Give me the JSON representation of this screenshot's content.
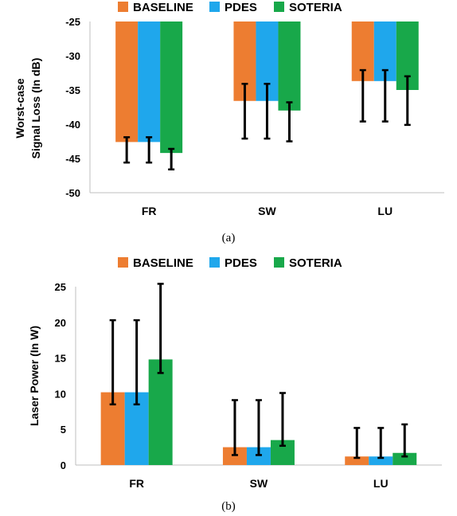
{
  "colors": {
    "BASELINE": "#ED7D31",
    "PDES": "#1FA7EC",
    "SOTERIA": "#18A84A"
  },
  "chart_data": [
    {
      "type": "bar",
      "caption": "(a)",
      "categories": [
        "FR",
        "SW",
        "LU"
      ],
      "ylabel_lines": [
        "Worst-case",
        "Signal Loss (In dB)"
      ],
      "ylim": [
        -50,
        -25
      ],
      "yticks": [
        -25,
        -30,
        -35,
        -40,
        -45,
        -50
      ],
      "bar_base": -25,
      "legend_position": "top",
      "series": [
        {
          "name": "BASELINE",
          "values": [
            -42.6,
            -36.6,
            -33.7
          ],
          "err_low": [
            -45.6,
            -42.1,
            -39.6
          ],
          "err_high": [
            -41.9,
            -34.1,
            -32.1
          ]
        },
        {
          "name": "PDES",
          "values": [
            -42.6,
            -36.6,
            -33.7
          ],
          "err_low": [
            -45.6,
            -42.1,
            -39.6
          ],
          "err_high": [
            -41.9,
            -34.1,
            -32.1
          ]
        },
        {
          "name": "SOTERIA",
          "values": [
            -44.2,
            -38.0,
            -35.0
          ],
          "err_low": [
            -46.6,
            -42.5,
            -40.1
          ],
          "err_high": [
            -43.6,
            -36.8,
            -33.0
          ]
        }
      ]
    },
    {
      "type": "bar",
      "caption": "(b)",
      "categories": [
        "FR",
        "SW",
        "LU"
      ],
      "ylabel_lines": [
        "Laser Power (In W)"
      ],
      "ylim": [
        0,
        25
      ],
      "yticks": [
        0,
        5,
        10,
        15,
        20,
        25
      ],
      "bar_base": 0,
      "legend_position": "top",
      "series": [
        {
          "name": "BASELINE",
          "values": [
            10.2,
            2.5,
            1.2
          ],
          "err_low": [
            8.5,
            1.4,
            1.0
          ],
          "err_high": [
            20.3,
            9.1,
            5.2
          ]
        },
        {
          "name": "PDES",
          "values": [
            10.2,
            2.5,
            1.2
          ],
          "err_low": [
            8.5,
            1.4,
            1.0
          ],
          "err_high": [
            20.3,
            9.1,
            5.2
          ]
        },
        {
          "name": "SOTERIA",
          "values": [
            14.8,
            3.5,
            1.7
          ],
          "err_low": [
            12.9,
            2.7,
            1.2
          ],
          "err_high": [
            25.4,
            10.1,
            5.7
          ]
        }
      ]
    }
  ]
}
